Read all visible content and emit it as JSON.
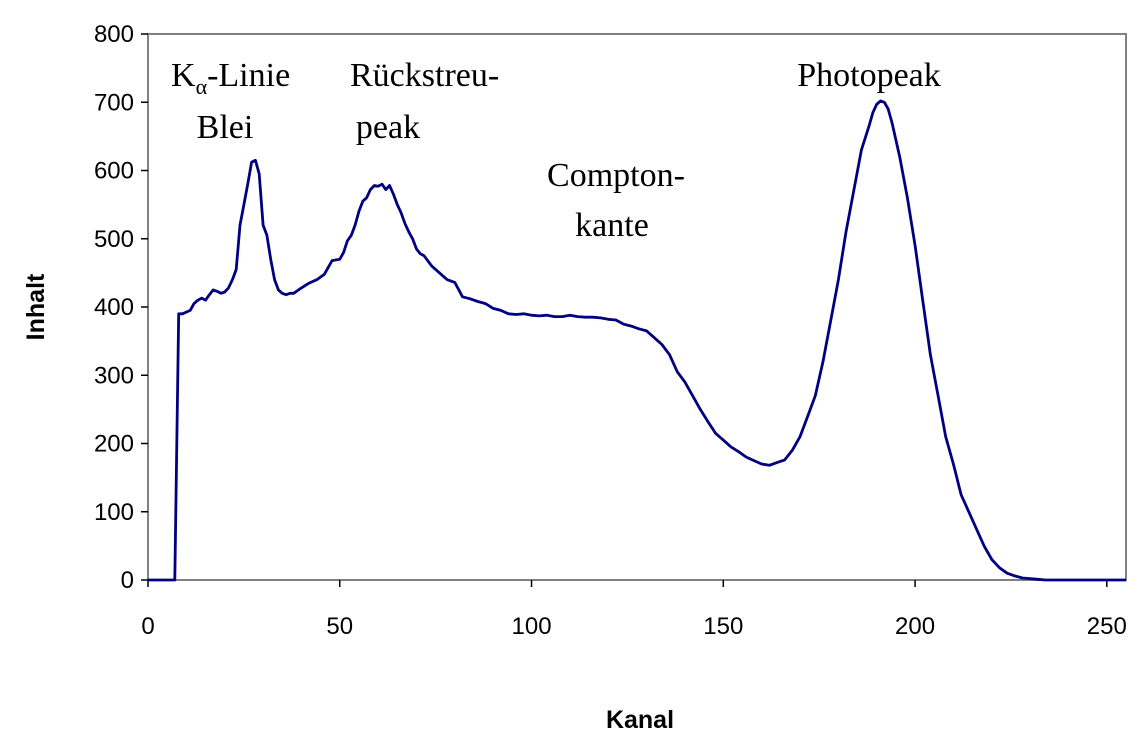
{
  "chart_data": {
    "type": "line",
    "xlabel": "Kanal",
    "ylabel": "Inhalt",
    "xlim": [
      0,
      255
    ],
    "ylim": [
      0,
      800
    ],
    "xticks": [
      0,
      50,
      100,
      150,
      200,
      250
    ],
    "yticks": [
      0,
      100,
      200,
      300,
      400,
      500,
      600,
      700,
      800
    ],
    "grid": false,
    "legend": "none",
    "line_color": "#000080",
    "series": [
      {
        "x": [
          0,
          7,
          8,
          9,
          11,
          12,
          13,
          14,
          15,
          16,
          17,
          18,
          19,
          20,
          21,
          22,
          23,
          24,
          25,
          26,
          27,
          28,
          29,
          30,
          31,
          32,
          33,
          34,
          35,
          36,
          37,
          38,
          40,
          42,
          44,
          46,
          48,
          50,
          51,
          52,
          53,
          54,
          55,
          56,
          57,
          58,
          59,
          60,
          61,
          62,
          63,
          64,
          65,
          66,
          67,
          68,
          69,
          70,
          71,
          72,
          74,
          76,
          78,
          80,
          82,
          84,
          86,
          88,
          90,
          92,
          94,
          96,
          98,
          100,
          102,
          104,
          106,
          108,
          110,
          112,
          114,
          116,
          118,
          120,
          122,
          124,
          126,
          128,
          130,
          132,
          134,
          136,
          138,
          140,
          142,
          144,
          146,
          148,
          150,
          152,
          154,
          156,
          158,
          160,
          162,
          164,
          166,
          168,
          170,
          172,
          174,
          176,
          178,
          180,
          182,
          184,
          186,
          188,
          189,
          190,
          191,
          192,
          193,
          194,
          196,
          198,
          200,
          202,
          204,
          206,
          208,
          210,
          212,
          214,
          216,
          218,
          220,
          222,
          224,
          226,
          228,
          230,
          232,
          234,
          240,
          255
        ],
        "y": [
          0,
          0,
          390,
          390,
          395,
          405,
          410,
          413,
          410,
          418,
          425,
          423,
          420,
          422,
          428,
          440,
          455,
          520,
          550,
          580,
          612,
          615,
          595,
          520,
          505,
          470,
          440,
          425,
          420,
          418,
          420,
          420,
          428,
          435,
          440,
          448,
          468,
          470,
          480,
          497,
          505,
          520,
          540,
          555,
          560,
          572,
          578,
          577,
          580,
          572,
          578,
          565,
          550,
          538,
          522,
          510,
          500,
          485,
          478,
          475,
          460,
          450,
          440,
          436,
          415,
          412,
          408,
          405,
          398,
          395,
          390,
          389,
          390,
          388,
          387,
          388,
          386,
          386,
          388,
          386,
          385,
          385,
          384,
          382,
          381,
          375,
          372,
          368,
          365,
          355,
          345,
          330,
          305,
          290,
          270,
          250,
          232,
          215,
          205,
          195,
          188,
          180,
          175,
          170,
          168,
          172,
          176,
          190,
          210,
          240,
          270,
          320,
          380,
          440,
          510,
          570,
          630,
          665,
          685,
          697,
          702,
          700,
          690,
          670,
          620,
          560,
          490,
          410,
          330,
          270,
          210,
          170,
          125,
          100,
          75,
          50,
          30,
          18,
          10,
          6,
          3,
          2,
          1,
          0,
          0,
          0
        ]
      }
    ],
    "annotations": [
      {
        "main": "K",
        "sub": "α",
        "rest": "-Linie",
        "line2": "Blei"
      },
      {
        "line1": "Rückstreu-",
        "line2": "peak"
      },
      {
        "line1": "Compton-",
        "line2": "kante"
      },
      {
        "line1": "Photopeak"
      }
    ]
  }
}
